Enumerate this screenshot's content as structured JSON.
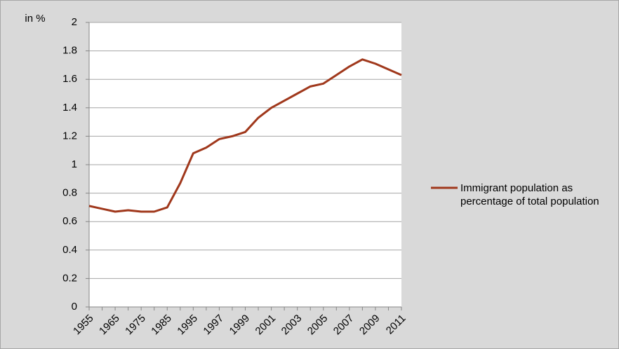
{
  "chart_data": {
    "type": "line",
    "y_label": "in %",
    "categories": [
      "1955",
      null,
      "1965",
      null,
      "1975",
      null,
      "1985",
      null,
      "1995",
      null,
      "1997",
      null,
      "1999",
      null,
      "2001",
      null,
      "2003",
      null,
      "2005",
      null,
      "2007",
      null,
      "2009",
      null,
      "2011"
    ],
    "series": [
      {
        "name": "Immigrant population as percentage of total population",
        "color": "#a0381c",
        "values": [
          0.71,
          0.69,
          0.67,
          0.68,
          0.67,
          0.67,
          0.7,
          0.87,
          1.08,
          1.12,
          1.18,
          1.2,
          1.23,
          1.33,
          1.4,
          1.45,
          1.5,
          1.55,
          1.57,
          1.63,
          1.69,
          1.74,
          1.71,
          1.67,
          1.63
        ]
      }
    ],
    "ylim": [
      0,
      2
    ],
    "yticks": [
      0,
      0.2,
      0.4,
      0.6,
      0.8,
      1,
      1.2,
      1.4,
      1.6,
      1.8,
      2
    ],
    "grid": true,
    "legend": "right"
  }
}
